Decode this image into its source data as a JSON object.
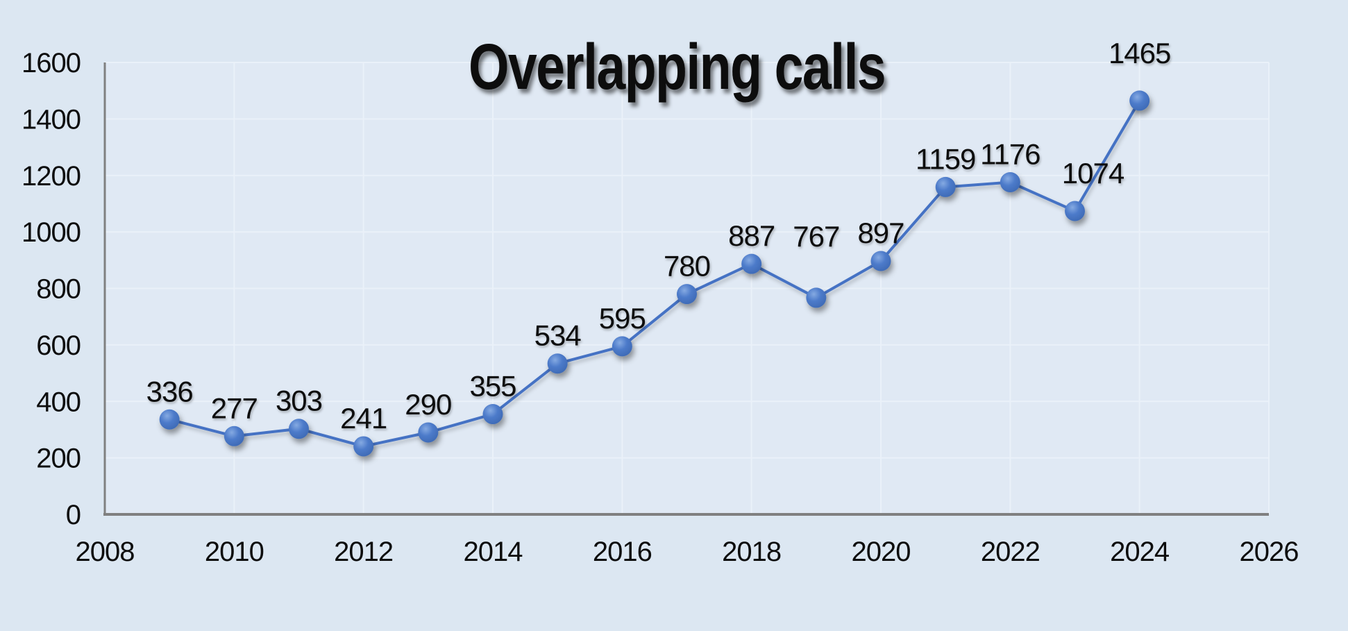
{
  "chart_data": {
    "type": "line",
    "title": "Overlapping calls",
    "x": [
      2009,
      2010,
      2011,
      2012,
      2013,
      2014,
      2015,
      2016,
      2017,
      2018,
      2019,
      2020,
      2021,
      2022,
      2023,
      2024
    ],
    "values": [
      336,
      277,
      303,
      241,
      290,
      355,
      534,
      595,
      780,
      887,
      767,
      897,
      1159,
      1176,
      1074,
      1465
    ],
    "x_ticks": [
      "2008",
      "2010",
      "2012",
      "2014",
      "2016",
      "2018",
      "2020",
      "2022",
      "2024",
      "2026"
    ],
    "y_ticks": [
      0,
      200,
      400,
      600,
      800,
      1000,
      1200,
      1400,
      1600
    ],
    "xlim": [
      2008,
      2026
    ],
    "ylim": [
      0,
      1600
    ],
    "grid": true,
    "legend": "none",
    "data_labels_position": "above",
    "label_offsets": {
      "10": {
        "dy": -48
      },
      "14": {
        "dx": 26,
        "dy": -14
      },
      "15": {
        "dy": -28
      }
    },
    "colors": {
      "background": "#dce7f2",
      "plot_background": "#e0e9f4",
      "gridline": "#eaf1f9",
      "axis": "#808080",
      "line": "#4472c4",
      "marker_highlight": "#85aae2",
      "marker_mid": "#4d7bca",
      "marker_edge": "#3b67b2",
      "text": "#0d0d0d"
    }
  }
}
